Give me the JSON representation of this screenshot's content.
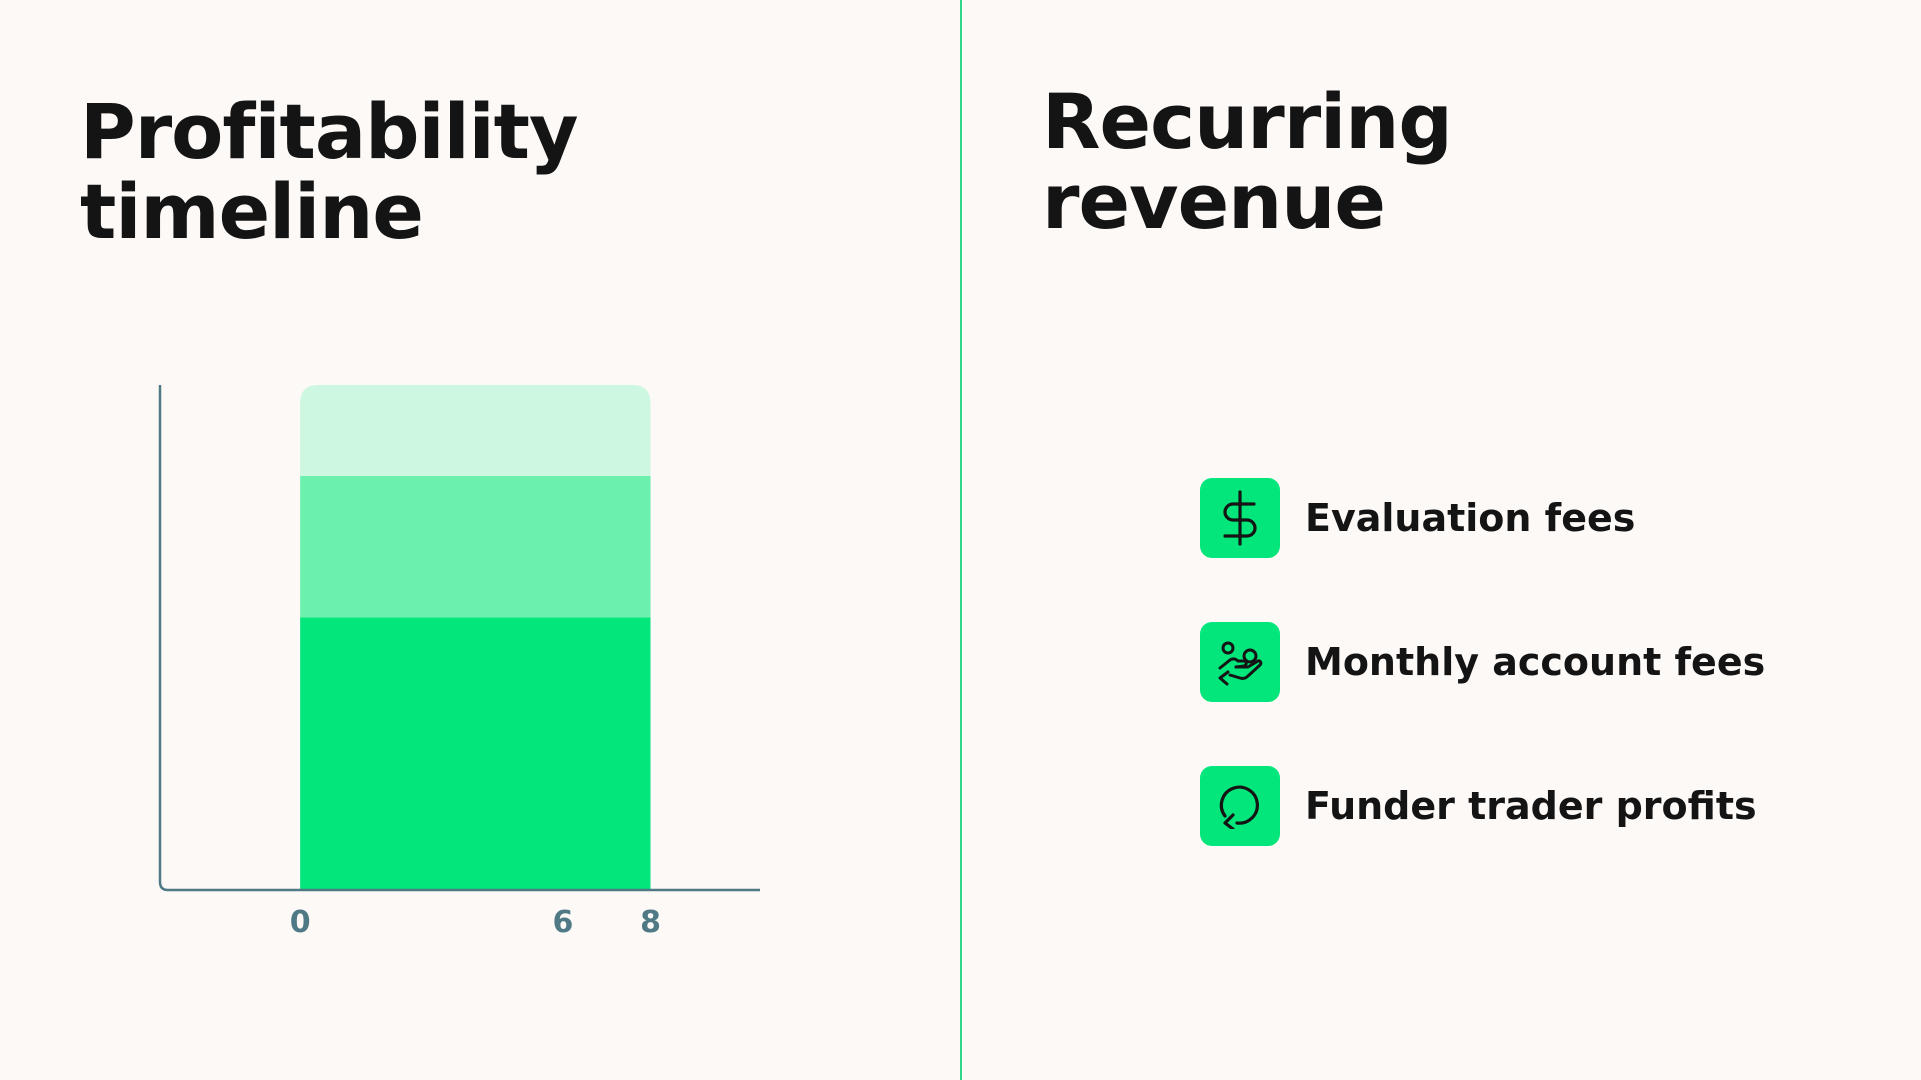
{
  "left_panel": {
    "title_line1": "Profitability",
    "title_line2": "timeline"
  },
  "right_panel": {
    "title_line1": "Recurring",
    "title_line2": "revenue",
    "items": [
      {
        "label": "Evaluation fees",
        "icon": "dollar-icon"
      },
      {
        "label": "Monthly account fees",
        "icon": "hand-coins-icon"
      },
      {
        "label": "Funder trader profits",
        "icon": "refresh-icon"
      }
    ]
  },
  "colors": {
    "background": "#fdf9f7",
    "accent": "#03e67b",
    "divider": "#2ed88a",
    "axis": "#4f7a85",
    "tick_label": "#4f7a85",
    "band_top": "#cdf7e1",
    "band_middle": "#6bf0ad",
    "band_bottom": "#03e67b",
    "icon_stroke": "#141414"
  },
  "chart_data": {
    "type": "bar",
    "x_ticks": [
      "0",
      "6",
      "8"
    ],
    "x_positions": [
      0,
      6,
      8
    ],
    "xlim": [
      -3.2,
      10.5
    ],
    "bar_x_range": [
      0,
      8
    ],
    "ylim": [
      0,
      100
    ],
    "series": [
      {
        "values": [
          54
        ],
        "color": "#03e67b"
      },
      {
        "values": [
          28
        ],
        "color": "#6bf0ad"
      },
      {
        "values": [
          18
        ],
        "color": "#cdf7e1"
      }
    ],
    "grid": false,
    "legend": "none"
  }
}
